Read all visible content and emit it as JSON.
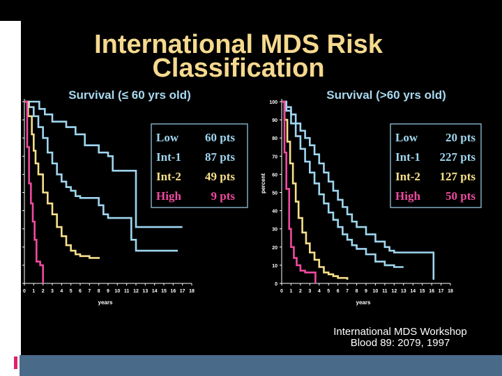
{
  "slide": {
    "title_line1": "International MDS Risk",
    "title_line2": "Classification",
    "colors": {
      "background": "#000000",
      "title": "#f5d98e",
      "subtitle": "#a9d9f0",
      "axis": "#ffffff",
      "footer_bar": "#4a6a8a",
      "accent": "#e0206a"
    }
  },
  "footer": {
    "line1": "International MDS Workshop",
    "line2": "Blood 89: 2079, 1997"
  },
  "chart_data": [
    {
      "type": "line",
      "title": "Survival (≤ 60 yrs old)",
      "xlabel": "years",
      "ylabel": "percent",
      "xlim": [
        0,
        18
      ],
      "ylim": [
        0,
        100
      ],
      "x_ticks": [
        "0",
        "1",
        "2",
        "3",
        "4",
        "5",
        "6",
        "7",
        "8",
        "9",
        "10",
        "11",
        "12",
        "13",
        "14",
        "15",
        "16",
        "17",
        "18"
      ],
      "y_ticks": [
        "0",
        "10",
        "20",
        "30",
        "40",
        "50",
        "60",
        "70",
        "80",
        "90",
        "100"
      ],
      "legend": [
        {
          "label": "Low",
          "count": "60 pts",
          "color": "#9fd6ef"
        },
        {
          "label": "Int-1",
          "count": "87 pts",
          "color": "#9fd6ef"
        },
        {
          "label": "Int-2",
          "count": "49 pts",
          "color": "#f7e08a"
        },
        {
          "label": "High",
          "count": "9 pts",
          "color": "#f04aa0"
        }
      ],
      "series": [
        {
          "name": "Low",
          "color": "#9fd6ef",
          "points": [
            [
              0,
              100
            ],
            [
              1,
              100
            ],
            [
              1.6,
              96
            ],
            [
              2.2,
              93
            ],
            [
              3,
              89
            ],
            [
              4.5,
              86
            ],
            [
              5.5,
              82
            ],
            [
              6.5,
              76
            ],
            [
              8,
              72
            ],
            [
              9,
              70
            ],
            [
              9.5,
              62
            ],
            [
              11,
              62
            ],
            [
              11.5,
              62
            ],
            [
              12,
              31
            ],
            [
              17,
              31
            ]
          ]
        },
        {
          "name": "Int-1",
          "color": "#9fd6ef",
          "points": [
            [
              0,
              100
            ],
            [
              0.5,
              97
            ],
            [
              1,
              92
            ],
            [
              1.5,
              86
            ],
            [
              2,
              80
            ],
            [
              2.5,
              72
            ],
            [
              3,
              66
            ],
            [
              3.5,
              60
            ],
            [
              4,
              56
            ],
            [
              4.5,
              53
            ],
            [
              5,
              51
            ],
            [
              5.5,
              48
            ],
            [
              6,
              47
            ],
            [
              7,
              47
            ],
            [
              8,
              43
            ],
            [
              8.5,
              38
            ],
            [
              9,
              36
            ],
            [
              10.5,
              36
            ],
            [
              11,
              36
            ],
            [
              11.5,
              24
            ],
            [
              12,
              18
            ],
            [
              15,
              18
            ],
            [
              16.5,
              18
            ]
          ]
        },
        {
          "name": "Int-2",
          "color": "#f7e08a",
          "points": [
            [
              0,
              100
            ],
            [
              0.4,
              92
            ],
            [
              0.8,
              82
            ],
            [
              1,
              73
            ],
            [
              1.2,
              66
            ],
            [
              1.5,
              60
            ],
            [
              2,
              50
            ],
            [
              2.5,
              44
            ],
            [
              3,
              38
            ],
            [
              3.5,
              31
            ],
            [
              4,
              26
            ],
            [
              4.5,
              21
            ],
            [
              5,
              18
            ],
            [
              5.5,
              16
            ],
            [
              6,
              15
            ],
            [
              7,
              14
            ],
            [
              8.1,
              14
            ]
          ]
        },
        {
          "name": "High",
          "color": "#f04aa0",
          "points": [
            [
              0,
              100
            ],
            [
              0.3,
              75
            ],
            [
              0.5,
              55
            ],
            [
              0.7,
              44
            ],
            [
              0.9,
              34
            ],
            [
              1.1,
              24
            ],
            [
              1.3,
              12
            ],
            [
              1.7,
              10
            ],
            [
              2,
              10
            ],
            [
              2,
              0
            ]
          ]
        }
      ]
    },
    {
      "type": "line",
      "title": "Survival (>60 yrs old)",
      "xlabel": "years",
      "ylabel": "percent",
      "xlim": [
        0,
        18
      ],
      "ylim": [
        0,
        100
      ],
      "x_ticks": [
        "0",
        "1",
        "2",
        "3",
        "4",
        "5",
        "6",
        "7",
        "8",
        "9",
        "10",
        "11",
        "12",
        "13",
        "14",
        "15",
        "16",
        "17",
        "18"
      ],
      "y_ticks": [
        "0",
        "10",
        "20",
        "30",
        "40",
        "50",
        "60",
        "70",
        "80",
        "90",
        "100"
      ],
      "legend": [
        {
          "label": "Low",
          "count": "20 pts",
          "color": "#9fd6ef"
        },
        {
          "label": "Int-1",
          "count": "227 pts",
          "color": "#9fd6ef"
        },
        {
          "label": "Int-2",
          "count": "127 pts",
          "color": "#f7e08a"
        },
        {
          "label": "High",
          "count": "50 pts",
          "color": "#f04aa0"
        }
      ],
      "series": [
        {
          "name": "Low",
          "color": "#9fd6ef",
          "points": [
            [
              0,
              100
            ],
            [
              0.5,
              97
            ],
            [
              1,
              93
            ],
            [
              1.5,
              88
            ],
            [
              2,
              84
            ],
            [
              2.5,
              80
            ],
            [
              3,
              76
            ],
            [
              3.5,
              71
            ],
            [
              4,
              66
            ],
            [
              4.5,
              61
            ],
            [
              5,
              56
            ],
            [
              5.5,
              51
            ],
            [
              6,
              46
            ],
            [
              6.5,
              42
            ],
            [
              7,
              38
            ],
            [
              7.5,
              34
            ],
            [
              8,
              31
            ],
            [
              9,
              27
            ],
            [
              10,
              23
            ],
            [
              11,
              20
            ],
            [
              11.5,
              18
            ],
            [
              12,
              17
            ],
            [
              16,
              17
            ],
            [
              16.2,
              2
            ]
          ]
        },
        {
          "name": "Int-1",
          "color": "#9fd6ef",
          "points": [
            [
              0,
              100
            ],
            [
              0.5,
              95
            ],
            [
              1,
              88
            ],
            [
              1.5,
              81
            ],
            [
              2,
              74
            ],
            [
              2.5,
              67
            ],
            [
              3,
              61
            ],
            [
              3.5,
              55
            ],
            [
              4,
              49
            ],
            [
              4.5,
              44
            ],
            [
              5,
              39
            ],
            [
              5.5,
              35
            ],
            [
              6,
              31
            ],
            [
              6.5,
              27
            ],
            [
              7,
              24
            ],
            [
              7.5,
              21
            ],
            [
              8,
              19
            ],
            [
              9,
              16
            ],
            [
              10,
              12
            ],
            [
              11,
              10
            ],
            [
              12,
              9
            ],
            [
              13,
              9
            ]
          ]
        },
        {
          "name": "Int-2",
          "color": "#f7e08a",
          "points": [
            [
              0,
              100
            ],
            [
              0.3,
              90
            ],
            [
              0.6,
              78
            ],
            [
              0.9,
              66
            ],
            [
              1.2,
              55
            ],
            [
              1.5,
              45
            ],
            [
              1.8,
              36
            ],
            [
              2.2,
              28
            ],
            [
              2.6,
              22
            ],
            [
              3,
              17
            ],
            [
              3.5,
              13
            ],
            [
              4,
              9
            ],
            [
              4.5,
              6
            ],
            [
              5,
              5
            ],
            [
              5.5,
              4
            ],
            [
              6,
              3
            ],
            [
              7,
              2
            ]
          ]
        },
        {
          "name": "High",
          "color": "#f04aa0",
          "points": [
            [
              0,
              100
            ],
            [
              0.3,
              72
            ],
            [
              0.5,
              52
            ],
            [
              0.8,
              30
            ],
            [
              1,
              20
            ],
            [
              1.3,
              14
            ],
            [
              1.6,
              10
            ],
            [
              2,
              7
            ],
            [
              2.5,
              6
            ],
            [
              3,
              6
            ],
            [
              3.6,
              6
            ],
            [
              3.6,
              0
            ]
          ]
        }
      ]
    }
  ]
}
